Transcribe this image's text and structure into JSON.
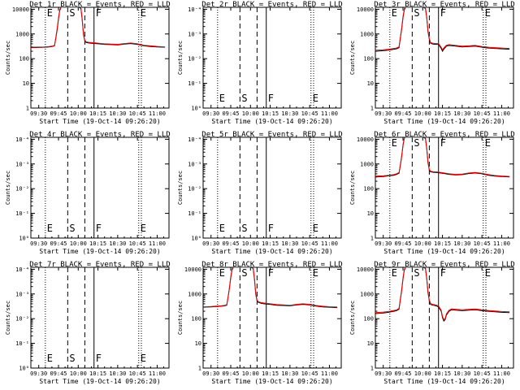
{
  "figure": {
    "legend_colors": {
      "events": "#000000",
      "lld": "#ff0000"
    },
    "x_axis": {
      "label": "Start Time (19-Oct-14 09:26:20)",
      "ticks": [
        "09:30",
        "09:45",
        "10:00",
        "10:15",
        "10:30",
        "10:45",
        "11:00"
      ],
      "tick_minutes": [
        0,
        15,
        30,
        45,
        60,
        75,
        90
      ],
      "range_minutes": [
        -6,
        99
      ]
    },
    "y_axis": {
      "label": "Counts/sec",
      "scale": "log",
      "range": [
        1,
        12000
      ],
      "ticks": [
        "1",
        "10",
        "100",
        "1000",
        "10000"
      ],
      "tick_values": [
        1,
        10,
        100,
        1000,
        10000
      ],
      "empty_ticks": [
        "10⁰",
        "10⁻¹",
        "10⁻²",
        "10⁻³",
        "10⁻⁴"
      ],
      "empty_tick_values": [
        1,
        10,
        100,
        1000,
        10000
      ]
    },
    "markers": {
      "labels": [
        "E",
        "S",
        "F",
        "E"
      ],
      "minutes": [
        5,
        22,
        42,
        76
      ],
      "styles": [
        "dotted",
        "dashed",
        "solid",
        "dotted"
      ],
      "extra_dashed_minute": 35,
      "extra_dotted_minute": 78
    }
  },
  "chart_data": [
    {
      "type": "line",
      "title": "Det 1r BLACK = Events, RED = LLD",
      "has_data": true,
      "x": [
        -6,
        0,
        4,
        8,
        10,
        12,
        13,
        14,
        15,
        16,
        17,
        18,
        20,
        25,
        30,
        32,
        33,
        34,
        35,
        36,
        37,
        38,
        40,
        45,
        50,
        55,
        60,
        65,
        70,
        75,
        80,
        85,
        90,
        96
      ],
      "series": [
        {
          "name": "Events",
          "values": [
            280,
            285,
            290,
            300,
            310,
            330,
            700,
            1500,
            4000,
            9000,
            12000,
            12000,
            12000,
            12000,
            12000,
            11000,
            4000,
            900,
            520,
            450,
            440,
            430,
            420,
            400,
            380,
            370,
            360,
            390,
            410,
            380,
            330,
            310,
            300,
            290
          ]
        },
        {
          "name": "LLD",
          "values": [
            290,
            295,
            300,
            310,
            320,
            340,
            760,
            1700,
            4500,
            10000,
            12000,
            12000,
            12000,
            12000,
            12000,
            12000,
            4400,
            1000,
            560,
            480,
            470,
            460,
            450,
            425,
            400,
            390,
            380,
            410,
            430,
            400,
            350,
            330,
            315,
            300
          ]
        }
      ]
    },
    {
      "type": "line",
      "title": "Det 2r BLACK = Events, RED = LLD",
      "has_data": false,
      "series": []
    },
    {
      "type": "line",
      "title": "Det 3r BLACK = Events, RED = LLD",
      "has_data": true,
      "x": [
        -6,
        0,
        4,
        8,
        10,
        12,
        13,
        14,
        15,
        16,
        17,
        18,
        20,
        25,
        30,
        32,
        33,
        34,
        35,
        36,
        37,
        38,
        40,
        42,
        44,
        45,
        46,
        48,
        50,
        55,
        60,
        65,
        70,
        75,
        80,
        85,
        90,
        96
      ],
      "series": [
        {
          "name": "Events",
          "values": [
            200,
            210,
            220,
            240,
            250,
            280,
            700,
            1600,
            4500,
            9500,
            12000,
            12000,
            12000,
            12000,
            12000,
            11000,
            5000,
            1200,
            600,
            420,
            400,
            390,
            380,
            380,
            260,
            200,
            240,
            320,
            340,
            320,
            300,
            310,
            320,
            290,
            270,
            260,
            250,
            240
          ]
        },
        {
          "name": "LLD",
          "values": [
            220,
            230,
            240,
            260,
            270,
            300,
            760,
            1750,
            5000,
            10500,
            12000,
            12000,
            12000,
            12000,
            12000,
            12000,
            5500,
            1300,
            650,
            450,
            430,
            420,
            410,
            410,
            290,
            230,
            270,
            350,
            370,
            345,
            320,
            330,
            345,
            310,
            290,
            280,
            270,
            260
          ]
        }
      ]
    },
    {
      "type": "line",
      "title": "Det 4r BLACK = Events, RED = LLD",
      "has_data": false,
      "series": []
    },
    {
      "type": "line",
      "title": "Det 5r BLACK = Events, RED = LLD",
      "has_data": false,
      "series": []
    },
    {
      "type": "line",
      "title": "Det 6r BLACK = Events, RED = LLD",
      "has_data": true,
      "x": [
        -6,
        0,
        4,
        8,
        10,
        12,
        13,
        14,
        15,
        16,
        17,
        18,
        20,
        25,
        30,
        32,
        33,
        34,
        35,
        36,
        37,
        38,
        40,
        45,
        50,
        55,
        60,
        65,
        70,
        75,
        80,
        85,
        90,
        96
      ],
      "series": [
        {
          "name": "Events",
          "values": [
            300,
            310,
            330,
            350,
            380,
            420,
            900,
            2000,
            5500,
            11000,
            12000,
            12000,
            12000,
            12000,
            12000,
            11000,
            4500,
            1100,
            560,
            480,
            470,
            460,
            450,
            420,
            380,
            360,
            370,
            410,
            430,
            400,
            350,
            320,
            310,
            300
          ]
        },
        {
          "name": "LLD",
          "values": [
            320,
            330,
            350,
            370,
            400,
            450,
            960,
            2200,
            6000,
            11500,
            12000,
            12000,
            12000,
            12000,
            12000,
            12000,
            5000,
            1200,
            600,
            510,
            500,
            490,
            480,
            445,
            400,
            380,
            390,
            430,
            455,
            420,
            370,
            340,
            325,
            315
          ]
        }
      ]
    },
    {
      "type": "line",
      "title": "Det 7r BLACK = Events, RED = LLD",
      "has_data": false,
      "series": []
    },
    {
      "type": "line",
      "title": "Det 8r BLACK = Events, RED = LLD",
      "has_data": true,
      "x": [
        -6,
        0,
        4,
        8,
        10,
        12,
        13,
        14,
        15,
        16,
        17,
        18,
        20,
        25,
        30,
        32,
        33,
        34,
        35,
        36,
        37,
        38,
        40,
        45,
        50,
        55,
        60,
        65,
        70,
        75,
        80,
        85,
        90,
        96
      ],
      "series": [
        {
          "name": "Events",
          "values": [
            290,
            300,
            310,
            320,
            330,
            350,
            750,
            1700,
            4500,
            9500,
            12000,
            12000,
            12000,
            12000,
            12000,
            11000,
            4200,
            950,
            520,
            460,
            440,
            420,
            400,
            380,
            350,
            340,
            330,
            360,
            380,
            360,
            320,
            300,
            290,
            280
          ]
        },
        {
          "name": "LLD",
          "values": [
            300,
            310,
            320,
            330,
            345,
            365,
            800,
            1850,
            5000,
            10500,
            12000,
            12000,
            12000,
            12000,
            12000,
            12000,
            4700,
            1050,
            560,
            490,
            470,
            450,
            430,
            400,
            370,
            360,
            350,
            380,
            400,
            380,
            340,
            318,
            305,
            295
          ]
        }
      ]
    },
    {
      "type": "line",
      "title": "Det 9r BLACK = Events, RED = LLD",
      "has_data": true,
      "x": [
        -6,
        0,
        4,
        8,
        10,
        12,
        13,
        14,
        15,
        16,
        17,
        18,
        20,
        25,
        30,
        32,
        33,
        34,
        35,
        36,
        37,
        38,
        40,
        42,
        44,
        45,
        46,
        47,
        48,
        50,
        52,
        55,
        60,
        65,
        70,
        75,
        80,
        85,
        90,
        96
      ],
      "series": [
        {
          "name": "Events",
          "values": [
            160,
            170,
            180,
            200,
            210,
            240,
            600,
            1400,
            4000,
            9000,
            12000,
            12000,
            12000,
            12000,
            12000,
            11000,
            4500,
            1100,
            520,
            380,
            360,
            350,
            330,
            300,
            200,
            110,
            80,
            90,
            140,
            200,
            230,
            220,
            210,
            220,
            230,
            210,
            200,
            190,
            180,
            175
          ]
        },
        {
          "name": "LLD",
          "values": [
            175,
            185,
            195,
            215,
            225,
            260,
            650,
            1550,
            4400,
            9800,
            12000,
            12000,
            12000,
            12000,
            12000,
            12000,
            5000,
            1200,
            570,
            410,
            390,
            380,
            360,
            330,
            220,
            125,
            92,
            100,
            155,
            220,
            250,
            240,
            228,
            238,
            248,
            228,
            215,
            205,
            195,
            190
          ]
        }
      ]
    }
  ]
}
